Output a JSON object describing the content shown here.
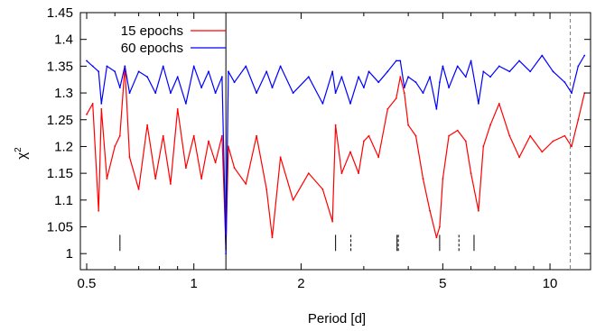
{
  "chart_data": {
    "type": "line",
    "title": "",
    "xlabel": "Period [d]",
    "ylabel": "χ",
    "ylabel_superscript": "2",
    "x_scale": "log",
    "xlim": [
      0.48,
      13.0
    ],
    "ylim": [
      0.97,
      1.45
    ],
    "x_ticks": [
      0.5,
      1,
      2,
      5,
      10
    ],
    "x_tick_labels": [
      "0.5",
      "1",
      "2",
      "5",
      "10"
    ],
    "y_ticks": [
      1,
      1.05,
      1.1,
      1.15,
      1.2,
      1.25,
      1.3,
      1.35,
      1.4,
      1.45
    ],
    "y_tick_labels": [
      "1",
      "1.05",
      "1.1",
      "1.15",
      "1.2",
      "1.25",
      "1.3",
      "1.35",
      "1.4",
      "1.45"
    ],
    "grid": false,
    "legend_position": "top-left",
    "series": [
      {
        "name": "15 epochs",
        "color": "#ff0000",
        "x": [
          0.5,
          0.52,
          0.54,
          0.55,
          0.57,
          0.6,
          0.62,
          0.64,
          0.66,
          0.7,
          0.74,
          0.78,
          0.82,
          0.86,
          0.9,
          0.95,
          1.0,
          1.05,
          1.1,
          1.15,
          1.2,
          1.23,
          1.25,
          1.3,
          1.4,
          1.5,
          1.6,
          1.66,
          1.75,
          1.9,
          2.1,
          2.3,
          2.45,
          2.5,
          2.6,
          2.75,
          2.9,
          3.0,
          3.1,
          3.3,
          3.5,
          3.7,
          3.8,
          3.9,
          4.0,
          4.2,
          4.4,
          4.6,
          4.8,
          4.9,
          5.0,
          5.2,
          5.5,
          5.8,
          6.0,
          6.3,
          6.5,
          6.8,
          7.2,
          7.7,
          8.2,
          8.8,
          9.5,
          10.2,
          11.0,
          11.5,
          12.0,
          12.5
        ],
        "y": [
          1.26,
          1.28,
          1.08,
          1.27,
          1.14,
          1.2,
          1.22,
          1.35,
          1.18,
          1.12,
          1.24,
          1.14,
          1.22,
          1.13,
          1.27,
          1.16,
          1.22,
          1.14,
          1.21,
          1.17,
          1.22,
          1.01,
          1.2,
          1.16,
          1.13,
          1.22,
          1.12,
          1.03,
          1.18,
          1.1,
          1.15,
          1.12,
          1.06,
          1.24,
          1.15,
          1.19,
          1.15,
          1.21,
          1.22,
          1.18,
          1.27,
          1.29,
          1.33,
          1.3,
          1.24,
          1.22,
          1.14,
          1.08,
          1.03,
          1.05,
          1.14,
          1.22,
          1.23,
          1.21,
          1.15,
          1.08,
          1.2,
          1.24,
          1.28,
          1.22,
          1.18,
          1.22,
          1.19,
          1.21,
          1.22,
          1.2,
          1.25,
          1.3
        ]
      },
      {
        "name": "60 epochs",
        "color": "#0000ff",
        "x": [
          0.5,
          0.52,
          0.54,
          0.55,
          0.57,
          0.6,
          0.62,
          0.64,
          0.66,
          0.7,
          0.74,
          0.78,
          0.82,
          0.86,
          0.9,
          0.95,
          1.0,
          1.05,
          1.1,
          1.15,
          1.2,
          1.23,
          1.25,
          1.3,
          1.4,
          1.5,
          1.6,
          1.66,
          1.75,
          1.9,
          2.1,
          2.3,
          2.45,
          2.5,
          2.6,
          2.75,
          2.9,
          3.0,
          3.1,
          3.3,
          3.5,
          3.7,
          3.8,
          3.9,
          4.0,
          4.2,
          4.4,
          4.6,
          4.8,
          4.9,
          5.0,
          5.2,
          5.5,
          5.8,
          6.0,
          6.3,
          6.5,
          6.8,
          7.2,
          7.7,
          8.2,
          8.8,
          9.5,
          10.2,
          11.0,
          11.5,
          12.0,
          12.5
        ],
        "y": [
          1.36,
          1.35,
          1.34,
          1.28,
          1.35,
          1.34,
          1.31,
          1.35,
          1.3,
          1.34,
          1.33,
          1.3,
          1.35,
          1.3,
          1.33,
          1.28,
          1.35,
          1.31,
          1.34,
          1.3,
          1.33,
          1.0,
          1.34,
          1.32,
          1.35,
          1.3,
          1.34,
          1.31,
          1.35,
          1.3,
          1.33,
          1.28,
          1.34,
          1.3,
          1.33,
          1.28,
          1.33,
          1.31,
          1.34,
          1.32,
          1.34,
          1.36,
          1.36,
          1.31,
          1.33,
          1.32,
          1.3,
          1.33,
          1.27,
          1.32,
          1.35,
          1.31,
          1.35,
          1.33,
          1.36,
          1.28,
          1.34,
          1.33,
          1.35,
          1.34,
          1.36,
          1.34,
          1.37,
          1.34,
          1.32,
          1.3,
          1.35,
          1.37
        ]
      }
    ],
    "vertical_lines": [
      {
        "x": 1.23,
        "style": "solid",
        "color": "#000000"
      },
      {
        "x": 11.4,
        "style": "dashed",
        "color": "#808080"
      }
    ],
    "tick_marks": [
      {
        "x": 0.62,
        "style": "solid"
      },
      {
        "x": 1.23,
        "style": "solid"
      },
      {
        "x": 2.5,
        "style": "solid"
      },
      {
        "x": 2.76,
        "style": "dashed"
      },
      {
        "x": 3.72,
        "style": "solid"
      },
      {
        "x": 3.75,
        "style": "dashed"
      },
      {
        "x": 4.9,
        "style": "solid"
      },
      {
        "x": 5.55,
        "style": "dashed"
      },
      {
        "x": 6.12,
        "style": "solid"
      }
    ]
  }
}
